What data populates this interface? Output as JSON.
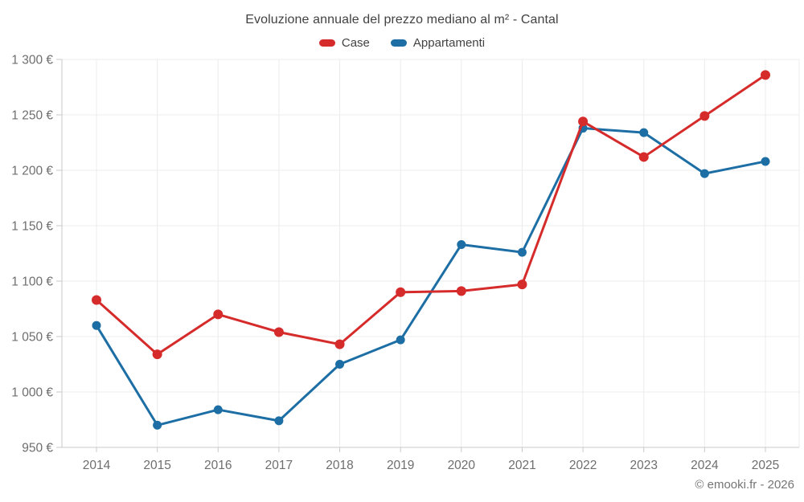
{
  "chart_data": {
    "type": "line",
    "title": "Evoluzione annuale del prezzo mediano al m² - Cantal",
    "categories": [
      "2014",
      "2015",
      "2016",
      "2017",
      "2018",
      "2019",
      "2020",
      "2021",
      "2022",
      "2023",
      "2024",
      "2025"
    ],
    "series": [
      {
        "name": "Case",
        "color": "#d62b2b",
        "values": [
          1083,
          1034,
          1070,
          1054,
          1043,
          1090,
          1091,
          1097,
          1244,
          1212,
          1249,
          1286
        ]
      },
      {
        "name": "Appartamenti",
        "color": "#1c6ea4",
        "values": [
          1060,
          970,
          984,
          974,
          1025,
          1047,
          1133,
          1126,
          1238,
          1234,
          1197,
          1208
        ]
      }
    ],
    "ylim": [
      950,
      1300
    ],
    "y_ticks": [
      950,
      1000,
      1050,
      1100,
      1150,
      1200,
      1250,
      1300
    ],
    "y_tick_labels": [
      "950 €",
      "1 000 €",
      "1 050 €",
      "1 100 €",
      "1 150 €",
      "1 200 €",
      "1 250 €",
      "1 300 €"
    ],
    "unit": "€",
    "grid": true,
    "legend_position": "top"
  },
  "footer": {
    "copyright": "© emooki.fr - 2026"
  },
  "colors": {
    "title_text": "#424242",
    "axis_text": "#6e6e6e",
    "gridline": "#ececec",
    "axis_line": "#c9c9c9",
    "background": "#ffffff"
  }
}
